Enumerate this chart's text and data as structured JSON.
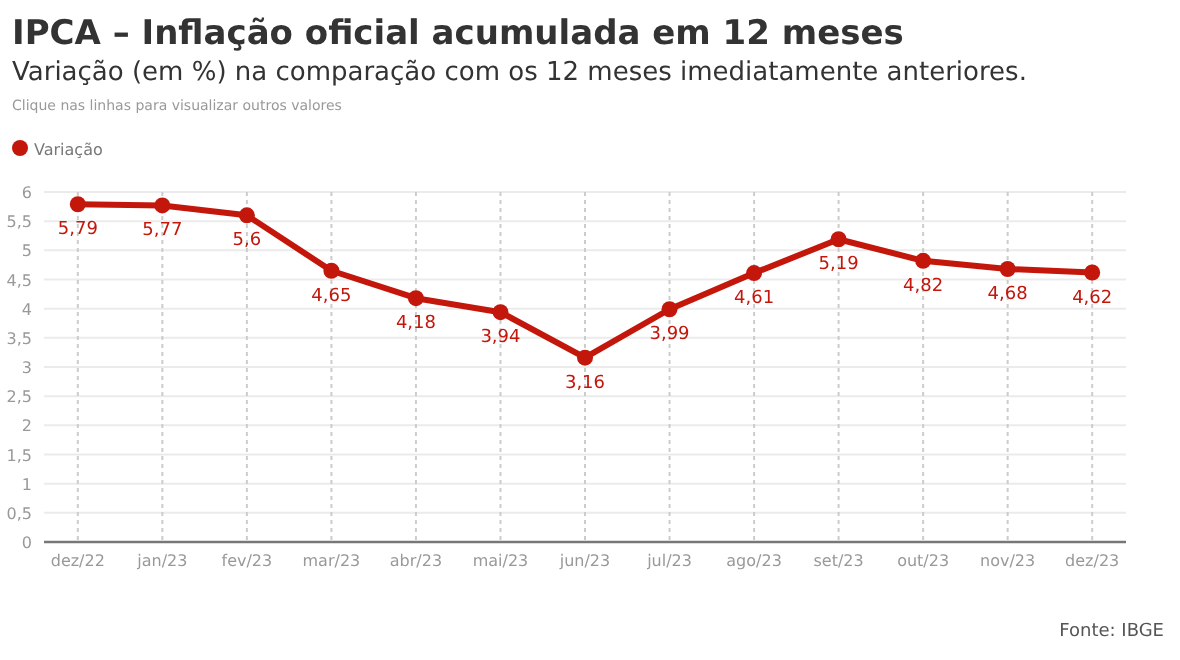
{
  "chart_data": {
    "type": "line",
    "title": "IPCA – Inflação oficial acumulada em 12 meses",
    "subtitle": "Variação (em %) na comparação com os 12 meses imediatamente anteriores.",
    "annotations": [
      "Clique nas linhas para visualizar outros valores",
      "Fonte: IBGE"
    ],
    "categories": [
      "dez/22",
      "jan/23",
      "fev/23",
      "mar/23",
      "abr/23",
      "mai/23",
      "jun/23",
      "jul/23",
      "ago/23",
      "set/23",
      "out/23",
      "nov/23",
      "dez/23"
    ],
    "series": [
      {
        "name": "Variação",
        "color": "#c4170c",
        "values": [
          5.79,
          5.77,
          5.6,
          4.65,
          4.18,
          3.94,
          3.16,
          3.99,
          4.61,
          5.19,
          4.82,
          4.68,
          4.62
        ],
        "value_labels": [
          "5,79",
          "5,77",
          "5,6",
          "4,65",
          "4,18",
          "3,94",
          "3,16",
          "3,99",
          "4,61",
          "5,19",
          "4,82",
          "4,68",
          "4,62"
        ]
      }
    ],
    "ylim": [
      0,
      6
    ],
    "yticks": [
      0,
      {
        "value": 0.5,
        "label": "0,5"
      },
      1,
      {
        "value": 1.5,
        "label": "1,5"
      },
      2,
      {
        "value": 2.5,
        "label": "2,5"
      },
      3,
      {
        "value": 3.5,
        "label": "3,5"
      },
      4,
      {
        "value": 4.5,
        "label": "4,5"
      },
      5,
      {
        "value": 5.5,
        "label": "5,5"
      },
      6
    ],
    "grid": true,
    "legend": "top left",
    "marker": "circle",
    "line_style": "solid"
  }
}
